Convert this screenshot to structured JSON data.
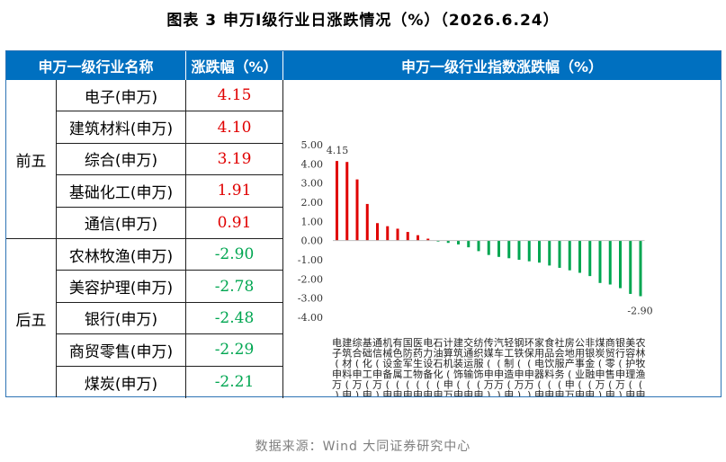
{
  "title": "图表 3  申万Ⅰ级行业日涨跌情况（%）（2026.6.24）",
  "headers": {
    "name": "申万一级行业名称",
    "pct": "涨跌幅（%）",
    "chart": "申万一级行业指数涨跌幅（%）"
  },
  "groups": {
    "top": "前五",
    "bottom": "后五"
  },
  "top5": [
    {
      "name": "电子(申万)",
      "value": "4.15"
    },
    {
      "name": "建筑材料(申万)",
      "value": "4.10"
    },
    {
      "name": "综合(申万)",
      "value": "3.19"
    },
    {
      "name": "基础化工(申万)",
      "value": "1.91"
    },
    {
      "name": "通信(申万)",
      "value": "0.91"
    }
  ],
  "bottom5": [
    {
      "name": "农林牧渔(申万)",
      "value": "-2.90"
    },
    {
      "name": "美容护理(申万)",
      "value": "-2.78"
    },
    {
      "name": "银行(申万)",
      "value": "-2.48"
    },
    {
      "name": "商贸零售(申万)",
      "value": "-2.29"
    },
    {
      "name": "煤炭(申万)",
      "value": "-2.21"
    }
  ],
  "source": "数据来源：Wind 大同证券研究中心",
  "colors": {
    "positive": "#e00000",
    "negative": "#00a651",
    "header": "#0070c0"
  },
  "chart_data": {
    "type": "bar",
    "title": "申万一级行业指数涨跌幅（%）",
    "ylim": [
      -4,
      5
    ],
    "yticks": [
      "5.00",
      "4.00",
      "3.00",
      "2.00",
      "1.00",
      "0.00",
      "-1.00",
      "-2.00",
      "-3.00",
      "-4.00"
    ],
    "grid": false,
    "categories": [
      "电子(申万)",
      "建筑材料(申万)",
      "综合(申万)",
      "基础化工(申万)",
      "通信(申万)",
      "机械设备(申万)",
      "有色金属(申万)",
      "国防军工(申万)",
      "医药生物(申万)",
      "电力设备(申万)",
      "石油石化(申万)",
      "计算机(申万)",
      "建筑装饰(申万)",
      "交通运输(申万)",
      "纺织服饰(申万)",
      "传媒(申万)",
      "汽车(申万)",
      "轻工制造(申万)",
      "钢铁(申万)",
      "环保(申万)",
      "家用电器(申万)",
      "食品饮料(申万)",
      "社会服务(申万)",
      "房地产(申万)",
      "公用事业(申万)",
      "非银金融(申万)",
      "煤炭(申万)",
      "商贸零售(申万)",
      "银行(申万)",
      "美容护理(申万)",
      "农林牧渔(申万)"
    ],
    "values": [
      4.15,
      4.1,
      3.19,
      1.91,
      0.91,
      0.75,
      0.62,
      0.45,
      0.28,
      0.1,
      -0.05,
      -0.12,
      -0.2,
      -0.35,
      -0.55,
      -0.75,
      -0.85,
      -0.92,
      -1.0,
      -1.08,
      -1.15,
      -1.3,
      -1.42,
      -1.55,
      -1.68,
      -1.85,
      -2.21,
      -2.29,
      -2.48,
      -2.78,
      -2.9
    ],
    "data_labels": {
      "max": "4.15",
      "min": "-2.90"
    }
  }
}
